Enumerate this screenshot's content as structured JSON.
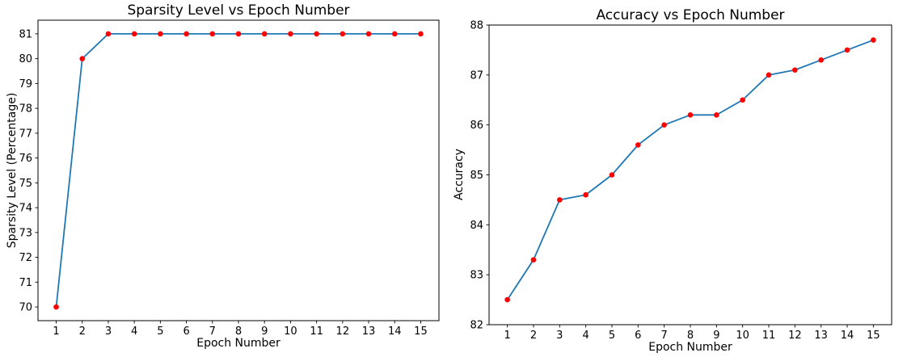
{
  "figure": {
    "background": "#ffffff",
    "frame_color": "#000000",
    "tick_color": "#000000"
  },
  "chart_data": [
    {
      "type": "line",
      "title": "Sparsity Level vs Epoch Number",
      "xlabel": "Epoch Number",
      "ylabel": "Sparsity Level (Percentage)",
      "x": [
        1,
        2,
        3,
        4,
        5,
        6,
        7,
        8,
        9,
        10,
        11,
        12,
        13,
        14,
        15
      ],
      "values": [
        70,
        80,
        81,
        81,
        81,
        81,
        81,
        81,
        81,
        81,
        81,
        81,
        81,
        81,
        81
      ],
      "xlim": [
        0.3,
        15.7
      ],
      "ylim": [
        69.45,
        81.55
      ],
      "xticks": [
        1,
        2,
        3,
        4,
        5,
        6,
        7,
        8,
        9,
        10,
        11,
        12,
        13,
        14,
        15
      ],
      "yticks": [
        70,
        71,
        72,
        73,
        74,
        75,
        76,
        77,
        78,
        79,
        80,
        81
      ],
      "line_color": "#1f77b4",
      "marker_color": "#ff0000",
      "marker": "circle",
      "grid": false,
      "legend": null
    },
    {
      "type": "line",
      "title": "Accuracy vs Epoch Number",
      "xlabel": "Epoch Number",
      "ylabel": "Accuracy",
      "x": [
        1,
        2,
        3,
        4,
        5,
        6,
        7,
        8,
        9,
        10,
        11,
        12,
        13,
        14,
        15
      ],
      "values": [
        82.5,
        83.3,
        84.5,
        84.6,
        85.0,
        85.6,
        86.0,
        86.2,
        86.2,
        86.5,
        87.0,
        87.1,
        87.3,
        87.5,
        87.7
      ],
      "xlim": [
        0.3,
        15.7
      ],
      "ylim": [
        82,
        88
      ],
      "xticks": [
        1,
        2,
        3,
        4,
        5,
        6,
        7,
        8,
        9,
        10,
        11,
        12,
        13,
        14,
        15
      ],
      "yticks": [
        82,
        83,
        84,
        85,
        86,
        87,
        88
      ],
      "line_color": "#1f77b4",
      "marker_color": "#ff0000",
      "marker": "circle",
      "grid": false,
      "legend": null
    }
  ]
}
